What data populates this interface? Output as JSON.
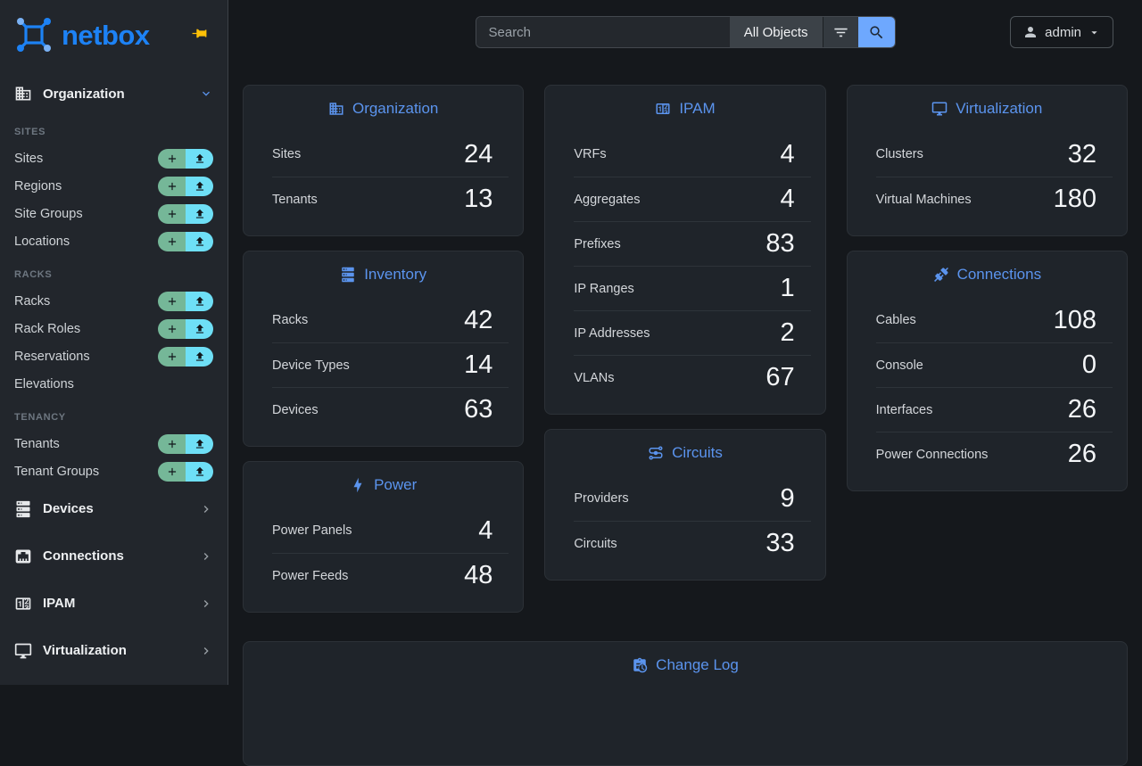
{
  "brand": {
    "logo_text": "netbox"
  },
  "topbar": {
    "search_placeholder": "Search",
    "scope_label": "All Objects",
    "user_label": "admin"
  },
  "sidebar": {
    "sections": [
      {
        "label": "Organization",
        "icon": "building-icon",
        "expanded": true,
        "groups": [
          {
            "label": "SITES",
            "items": [
              {
                "label": "Sites",
                "quick_actions": true
              },
              {
                "label": "Regions",
                "quick_actions": true
              },
              {
                "label": "Site Groups",
                "quick_actions": true
              },
              {
                "label": "Locations",
                "quick_actions": true
              }
            ]
          },
          {
            "label": "RACKS",
            "items": [
              {
                "label": "Racks",
                "quick_actions": true
              },
              {
                "label": "Rack Roles",
                "quick_actions": true
              },
              {
                "label": "Reservations",
                "quick_actions": true
              },
              {
                "label": "Elevations",
                "quick_actions": false
              }
            ]
          },
          {
            "label": "TENANCY",
            "items": [
              {
                "label": "Tenants",
                "quick_actions": true
              },
              {
                "label": "Tenant Groups",
                "quick_actions": true
              }
            ]
          }
        ]
      },
      {
        "label": "Devices",
        "icon": "server-icon",
        "expanded": false
      },
      {
        "label": "Connections",
        "icon": "ethernet-icon",
        "expanded": false
      },
      {
        "label": "IPAM",
        "icon": "counter-icon",
        "expanded": false
      },
      {
        "label": "Virtualization",
        "icon": "monitor-icon",
        "expanded": false
      }
    ]
  },
  "dashboard": {
    "columns": [
      [
        {
          "title": "Organization",
          "icon": "building-icon",
          "rows": [
            {
              "label": "Sites",
              "value": "24"
            },
            {
              "label": "Tenants",
              "value": "13"
            }
          ]
        },
        {
          "title": "Inventory",
          "icon": "server-icon",
          "rows": [
            {
              "label": "Racks",
              "value": "42"
            },
            {
              "label": "Device Types",
              "value": "14"
            },
            {
              "label": "Devices",
              "value": "63"
            }
          ]
        },
        {
          "title": "Power",
          "icon": "lightning-icon",
          "rows": [
            {
              "label": "Power Panels",
              "value": "4"
            },
            {
              "label": "Power Feeds",
              "value": "48"
            }
          ]
        }
      ],
      [
        {
          "title": "IPAM",
          "icon": "counter-icon",
          "rows": [
            {
              "label": "VRFs",
              "value": "4"
            },
            {
              "label": "Aggregates",
              "value": "4"
            },
            {
              "label": "Prefixes",
              "value": "83"
            },
            {
              "label": "IP Ranges",
              "value": "1"
            },
            {
              "label": "IP Addresses",
              "value": "2"
            },
            {
              "label": "VLANs",
              "value": "67"
            }
          ]
        },
        {
          "title": "Circuits",
          "icon": "transit-icon",
          "rows": [
            {
              "label": "Providers",
              "value": "9"
            },
            {
              "label": "Circuits",
              "value": "33"
            }
          ]
        }
      ],
      [
        {
          "title": "Virtualization",
          "icon": "monitor-icon",
          "rows": [
            {
              "label": "Clusters",
              "value": "32"
            },
            {
              "label": "Virtual Machines",
              "value": "180"
            }
          ]
        },
        {
          "title": "Connections",
          "icon": "connection-icon",
          "rows": [
            {
              "label": "Cables",
              "value": "108"
            },
            {
              "label": "Console",
              "value": "0"
            },
            {
              "label": "Interfaces",
              "value": "26"
            },
            {
              "label": "Power Connections",
              "value": "26"
            }
          ]
        }
      ]
    ],
    "footer_card": {
      "title": "Change Log",
      "icon": "clipboard-clock-icon"
    }
  },
  "colors": {
    "bg": "#15181c",
    "card": "#1f242a",
    "card-border": "#2c3137",
    "divider": "#2e343a",
    "sidebar": "#22262c",
    "sidebar-border": "#3c4147",
    "accent": "#5b94ee",
    "brand": "#1d82f5",
    "brand-light": "#7ab1f4",
    "green": "#75b798",
    "cyan": "#6edff6",
    "yellow": "#ffc107",
    "blue": "#6ea8fe",
    "muted": "#6e7781"
  }
}
